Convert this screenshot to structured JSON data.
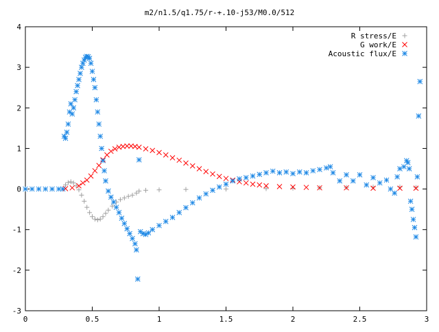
{
  "chart_data": {
    "type": "scatter",
    "title": "m2/n1.5/q1.75/r-+.10-j53/M0.0/512",
    "xlabel": "",
    "ylabel": "",
    "xlim": [
      0,
      3
    ],
    "ylim": [
      -3,
      4
    ],
    "xticks": [
      "0",
      "0.5",
      "1",
      "1.5",
      "2",
      "2.5",
      "3"
    ],
    "yticks": [
      "4",
      "3",
      "2",
      "1",
      "0",
      "-1",
      "-2",
      "-3"
    ],
    "grid": false,
    "legend_position": "top-right",
    "series": [
      {
        "name": "R stress/E",
        "marker": "plus",
        "color": "#a0a0a0",
        "points": [
          [
            0.0,
            0.0
          ],
          [
            0.1,
            0.0
          ],
          [
            0.2,
            0.0
          ],
          [
            0.28,
            0.0
          ],
          [
            0.3,
            0.1
          ],
          [
            0.32,
            0.16
          ],
          [
            0.34,
            0.18
          ],
          [
            0.36,
            0.15
          ],
          [
            0.38,
            0.08
          ],
          [
            0.4,
            -0.02
          ],
          [
            0.42,
            -0.15
          ],
          [
            0.44,
            -0.3
          ],
          [
            0.46,
            -0.45
          ],
          [
            0.48,
            -0.58
          ],
          [
            0.5,
            -0.68
          ],
          [
            0.52,
            -0.74
          ],
          [
            0.54,
            -0.76
          ],
          [
            0.56,
            -0.74
          ],
          [
            0.58,
            -0.68
          ],
          [
            0.6,
            -0.6
          ],
          [
            0.62,
            -0.52
          ],
          [
            0.65,
            -0.42
          ],
          [
            0.68,
            -0.32
          ],
          [
            0.71,
            -0.26
          ],
          [
            0.74,
            -0.22
          ],
          [
            0.77,
            -0.18
          ],
          [
            0.8,
            -0.15
          ],
          [
            0.83,
            -0.1
          ],
          [
            0.85,
            -0.05
          ],
          [
            0.9,
            -0.03
          ],
          [
            1.0,
            -0.02
          ],
          [
            1.2,
            -0.01
          ],
          [
            1.5,
            0.0
          ],
          [
            1.8,
            0.01
          ],
          [
            2.0,
            0.02
          ],
          [
            2.2,
            0.03
          ],
          [
            2.4,
            0.04
          ],
          [
            2.6,
            0.05
          ],
          [
            2.8,
            0.05
          ],
          [
            2.92,
            0.04
          ]
        ]
      },
      {
        "name": "G work/E",
        "marker": "cross",
        "color": "#ff0000",
        "points": [
          [
            0.3,
            0.01
          ],
          [
            0.35,
            0.03
          ],
          [
            0.4,
            0.08
          ],
          [
            0.43,
            0.15
          ],
          [
            0.46,
            0.22
          ],
          [
            0.49,
            0.32
          ],
          [
            0.52,
            0.45
          ],
          [
            0.55,
            0.58
          ],
          [
            0.58,
            0.72
          ],
          [
            0.61,
            0.84
          ],
          [
            0.64,
            0.93
          ],
          [
            0.67,
            0.99
          ],
          [
            0.7,
            1.03
          ],
          [
            0.73,
            1.05
          ],
          [
            0.76,
            1.06
          ],
          [
            0.79,
            1.06
          ],
          [
            0.82,
            1.05
          ],
          [
            0.85,
            1.03
          ],
          [
            0.9,
            0.99
          ],
          [
            0.95,
            0.95
          ],
          [
            1.0,
            0.9
          ],
          [
            1.05,
            0.84
          ],
          [
            1.1,
            0.77
          ],
          [
            1.15,
            0.71
          ],
          [
            1.2,
            0.64
          ],
          [
            1.25,
            0.57
          ],
          [
            1.3,
            0.5
          ],
          [
            1.35,
            0.43
          ],
          [
            1.4,
            0.37
          ],
          [
            1.45,
            0.31
          ],
          [
            1.5,
            0.26
          ],
          [
            1.55,
            0.22
          ],
          [
            1.6,
            0.18
          ],
          [
            1.65,
            0.15
          ],
          [
            1.7,
            0.12
          ],
          [
            1.75,
            0.1
          ],
          [
            1.8,
            0.08
          ],
          [
            1.9,
            0.06
          ],
          [
            2.0,
            0.05
          ],
          [
            2.1,
            0.04
          ],
          [
            2.2,
            0.03
          ],
          [
            2.4,
            0.03
          ],
          [
            2.6,
            0.02
          ],
          [
            2.8,
            0.02
          ],
          [
            2.92,
            0.02
          ]
        ]
      },
      {
        "name": "Acoustic flux/E",
        "marker": "star",
        "color": "#1e88e5",
        "points": [
          [
            0.0,
            0.0
          ],
          [
            0.05,
            0.0
          ],
          [
            0.1,
            0.0
          ],
          [
            0.15,
            0.0
          ],
          [
            0.2,
            0.0
          ],
          [
            0.25,
            0.0
          ],
          [
            0.28,
            0.0
          ],
          [
            0.29,
            1.3
          ],
          [
            0.3,
            1.25
          ],
          [
            0.31,
            1.4
          ],
          [
            0.32,
            1.6
          ],
          [
            0.33,
            1.9
          ],
          [
            0.34,
            2.1
          ],
          [
            0.35,
            1.85
          ],
          [
            0.36,
            2.0
          ],
          [
            0.37,
            2.2
          ],
          [
            0.38,
            2.4
          ],
          [
            0.39,
            2.55
          ],
          [
            0.4,
            2.7
          ],
          [
            0.41,
            2.85
          ],
          [
            0.42,
            3.0
          ],
          [
            0.43,
            3.1
          ],
          [
            0.44,
            3.18
          ],
          [
            0.45,
            3.25
          ],
          [
            0.46,
            3.27
          ],
          [
            0.47,
            3.26
          ],
          [
            0.48,
            3.22
          ],
          [
            0.49,
            3.1
          ],
          [
            0.5,
            2.9
          ],
          [
            0.51,
            2.7
          ],
          [
            0.52,
            2.5
          ],
          [
            0.53,
            2.2
          ],
          [
            0.54,
            1.9
          ],
          [
            0.55,
            1.6
          ],
          [
            0.56,
            1.3
          ],
          [
            0.57,
            1.0
          ],
          [
            0.58,
            0.7
          ],
          [
            0.59,
            0.45
          ],
          [
            0.6,
            0.2
          ],
          [
            0.62,
            -0.05
          ],
          [
            0.64,
            -0.2
          ],
          [
            0.66,
            -0.32
          ],
          [
            0.68,
            -0.45
          ],
          [
            0.7,
            -0.58
          ],
          [
            0.72,
            -0.72
          ],
          [
            0.74,
            -0.85
          ],
          [
            0.76,
            -0.98
          ],
          [
            0.78,
            -1.1
          ],
          [
            0.8,
            -1.22
          ],
          [
            0.82,
            -1.35
          ],
          [
            0.83,
            -1.5
          ],
          [
            0.84,
            -2.22
          ],
          [
            0.85,
            0.72
          ],
          [
            0.86,
            -1.05
          ],
          [
            0.88,
            -1.1
          ],
          [
            0.9,
            -1.12
          ],
          [
            0.92,
            -1.08
          ],
          [
            0.95,
            -1.0
          ],
          [
            1.0,
            -0.9
          ],
          [
            1.05,
            -0.8
          ],
          [
            1.1,
            -0.7
          ],
          [
            1.15,
            -0.58
          ],
          [
            1.2,
            -0.46
          ],
          [
            1.25,
            -0.34
          ],
          [
            1.3,
            -0.22
          ],
          [
            1.35,
            -0.12
          ],
          [
            1.4,
            -0.03
          ],
          [
            1.45,
            0.05
          ],
          [
            1.5,
            0.12
          ],
          [
            1.55,
            0.2
          ],
          [
            1.6,
            0.25
          ],
          [
            1.65,
            0.28
          ],
          [
            1.7,
            0.32
          ],
          [
            1.75,
            0.36
          ],
          [
            1.8,
            0.4
          ],
          [
            1.85,
            0.44
          ],
          [
            1.9,
            0.4
          ],
          [
            1.95,
            0.42
          ],
          [
            2.0,
            0.38
          ],
          [
            2.05,
            0.42
          ],
          [
            2.1,
            0.4
          ],
          [
            2.15,
            0.45
          ],
          [
            2.2,
            0.48
          ],
          [
            2.25,
            0.52
          ],
          [
            2.28,
            0.55
          ],
          [
            2.3,
            0.4
          ],
          [
            2.35,
            0.2
          ],
          [
            2.4,
            0.35
          ],
          [
            2.45,
            0.2
          ],
          [
            2.5,
            0.35
          ],
          [
            2.55,
            0.1
          ],
          [
            2.6,
            0.28
          ],
          [
            2.65,
            0.15
          ],
          [
            2.7,
            0.22
          ],
          [
            2.73,
            0.0
          ],
          [
            2.76,
            -0.1
          ],
          [
            2.78,
            0.3
          ],
          [
            2.8,
            0.5
          ],
          [
            2.83,
            0.55
          ],
          [
            2.85,
            0.7
          ],
          [
            2.86,
            0.65
          ],
          [
            2.87,
            0.5
          ],
          [
            2.88,
            -0.3
          ],
          [
            2.89,
            -0.5
          ],
          [
            2.9,
            -0.75
          ],
          [
            2.91,
            -0.95
          ],
          [
            2.92,
            -1.18
          ],
          [
            2.93,
            0.3
          ],
          [
            2.94,
            1.8
          ],
          [
            2.95,
            2.65
          ]
        ]
      }
    ]
  }
}
